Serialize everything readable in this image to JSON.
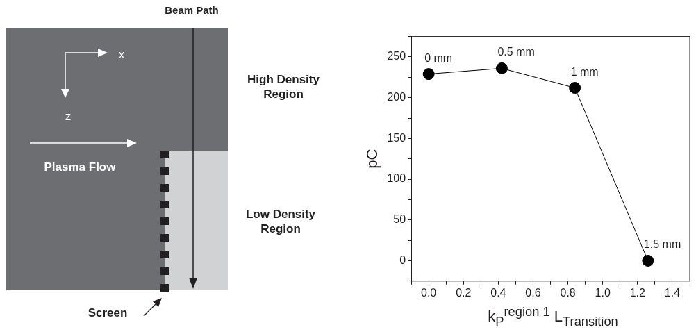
{
  "chart_data": [
    {
      "type": "other",
      "annotations": [
        "Beam Path",
        "x",
        "z",
        "High Density Region",
        "Plasma Flow",
        "Low Density Region",
        "Screen"
      ]
    },
    {
      "type": "line",
      "x": [
        0,
        0.42,
        0.84,
        1.26
      ],
      "values": [
        229,
        236,
        212,
        0
      ],
      "color": "#000000",
      "marker": "circle",
      "xlim": [
        -0.1,
        1.5
      ],
      "xticks": [
        {
          "value": -0.1,
          "label": null
        },
        {
          "value": 0,
          "label": "0.0"
        },
        {
          "value": 0.1,
          "label": null
        },
        0.2,
        {
          "value": 0.3,
          "label": null
        },
        0.4,
        {
          "value": 0.5,
          "label": null
        },
        0.6,
        {
          "value": 0.7,
          "label": null
        },
        0.8,
        {
          "value": 0.9,
          "label": null
        },
        {
          "value": 1,
          "label": "1.0"
        },
        {
          "value": 1.1,
          "label": null
        },
        1.2,
        {
          "value": 1.3,
          "label": null
        },
        1.4,
        {
          "value": 1.5,
          "label": null
        }
      ],
      "ylim": [
        -25,
        275
      ],
      "yticks": [
        {
          "value": -25,
          "label": null
        },
        0,
        {
          "value": 25,
          "label": null
        },
        50,
        {
          "value": 75,
          "label": null
        },
        100,
        {
          "value": 125,
          "label": null
        },
        150,
        {
          "value": 175,
          "label": null
        },
        200,
        {
          "value": 225,
          "label": null
        },
        250,
        {
          "value": 275,
          "label": null
        }
      ],
      "xlabel": "k$_{P}$$^{region 1}$ L$_{Transition}$",
      "ylabel": "pC",
      "annotations": [
        {
          "text": "0 mm",
          "x": 0,
          "y": 229
        },
        {
          "text": "0.5 mm",
          "x": 0.42,
          "y": 236
        },
        {
          "text": "1 mm",
          "x": 0.84,
          "y": 212
        },
        {
          "text": "1.5 mm",
          "x": 1.26,
          "y": 0
        }
      ]
    }
  ]
}
